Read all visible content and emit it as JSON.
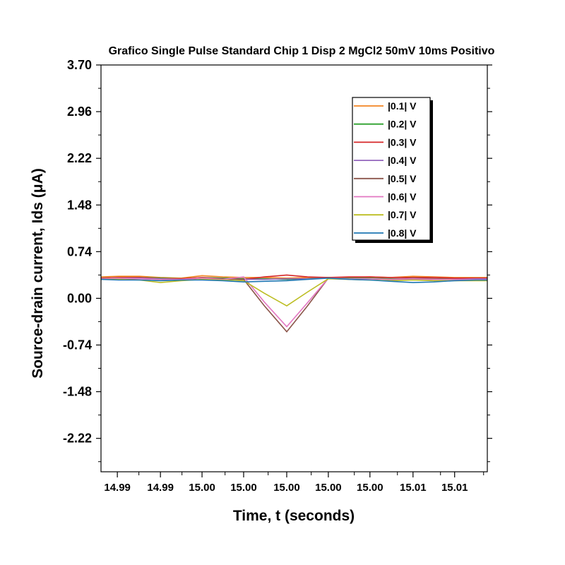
{
  "chart_data": {
    "type": "line",
    "title": "Grafico Single Pulse Standard Chip 1 Disp 2 MgCl2 50mV 10ms Positivo",
    "xlabel": "Time, t (seconds)",
    "ylabel": "Source-drain current, Ids (μA)",
    "ylim": [
      -2.75,
      3.7
    ],
    "xlim": [
      14.9876,
      15.0136
    ],
    "y_ticks": [
      3.7,
      2.96,
      2.22,
      1.48,
      0.74,
      0.0,
      -0.74,
      -1.48,
      -2.22
    ],
    "y_tick_labels": [
      "3.70",
      "2.96",
      "2.22",
      "1.48",
      "0.74",
      "0.00",
      "-0.74",
      "-1.48",
      "-2.22"
    ],
    "x_ticks": [
      14.9887,
      14.9916,
      14.9944,
      14.9972,
      15.0001,
      15.0029,
      15.0057,
      15.0086,
      15.0114
    ],
    "x_tick_labels": [
      "14.99",
      "14.99",
      "15.00",
      "15.00",
      "15.00",
      "15.00",
      "15.00",
      "15.01",
      "15.01"
    ],
    "legend_position": "top-right",
    "grid": false,
    "x": [
      14.9876,
      14.9888,
      14.9902,
      14.9916,
      14.993,
      14.9944,
      14.9958,
      14.9972,
      14.9986,
      15.0001,
      15.0015,
      15.0029,
      15.0043,
      15.0057,
      15.0071,
      15.0086,
      15.01,
      15.0114,
      15.0128,
      15.0136
    ],
    "series": [
      {
        "name": "|0.1| V",
        "color": "#f28522",
        "values": [
          0.34,
          0.35,
          0.35,
          0.33,
          0.32,
          0.36,
          0.34,
          0.33,
          0.33,
          0.32,
          0.33,
          0.33,
          0.33,
          0.34,
          0.33,
          0.35,
          0.34,
          0.33,
          0.33,
          0.33
        ]
      },
      {
        "name": "|0.2| V",
        "color": "#2ca02c",
        "values": [
          0.32,
          0.33,
          0.33,
          0.32,
          0.31,
          0.33,
          0.32,
          0.31,
          0.31,
          0.3,
          0.31,
          0.33,
          0.32,
          0.32,
          0.31,
          0.31,
          0.31,
          0.31,
          0.31,
          0.31
        ]
      },
      {
        "name": "|0.3| V",
        "color": "#d62728",
        "values": [
          0.32,
          0.33,
          0.33,
          0.31,
          0.31,
          0.33,
          0.31,
          0.3,
          0.34,
          0.37,
          0.34,
          0.33,
          0.34,
          0.34,
          0.33,
          0.33,
          0.33,
          0.32,
          0.32,
          0.32
        ]
      },
      {
        "name": "|0.4| V",
        "color": "#9467bd",
        "values": [
          0.31,
          0.32,
          0.32,
          0.31,
          0.3,
          0.32,
          0.31,
          0.3,
          0.3,
          0.31,
          0.31,
          0.32,
          0.31,
          0.31,
          0.3,
          0.3,
          0.3,
          0.3,
          0.31,
          0.31
        ]
      },
      {
        "name": "|0.5| V",
        "color": "#8c564b",
        "values": [
          0.31,
          0.31,
          0.31,
          0.3,
          0.29,
          0.32,
          0.31,
          0.3,
          -0.12,
          -0.53,
          -0.12,
          0.32,
          0.31,
          0.31,
          0.3,
          0.32,
          0.31,
          0.3,
          0.3,
          0.3
        ]
      },
      {
        "name": "|0.6| V",
        "color": "#e377c2",
        "values": [
          0.31,
          0.32,
          0.31,
          0.3,
          0.3,
          0.32,
          0.3,
          0.34,
          -0.06,
          -0.45,
          -0.07,
          0.32,
          0.31,
          0.31,
          0.3,
          0.31,
          0.3,
          0.3,
          0.3,
          0.3
        ]
      },
      {
        "name": "|0.7| V",
        "color": "#bcbd22",
        "values": [
          0.3,
          0.3,
          0.29,
          0.25,
          0.28,
          0.3,
          0.29,
          0.28,
          0.08,
          -0.12,
          0.1,
          0.31,
          0.3,
          0.29,
          0.28,
          0.29,
          0.28,
          0.28,
          0.28,
          0.28
        ]
      },
      {
        "name": "|0.8| V",
        "color": "#1f77b4",
        "values": [
          0.3,
          0.29,
          0.29,
          0.28,
          0.29,
          0.29,
          0.28,
          0.26,
          0.27,
          0.28,
          0.3,
          0.32,
          0.3,
          0.29,
          0.27,
          0.25,
          0.26,
          0.28,
          0.29,
          0.29
        ]
      }
    ]
  }
}
